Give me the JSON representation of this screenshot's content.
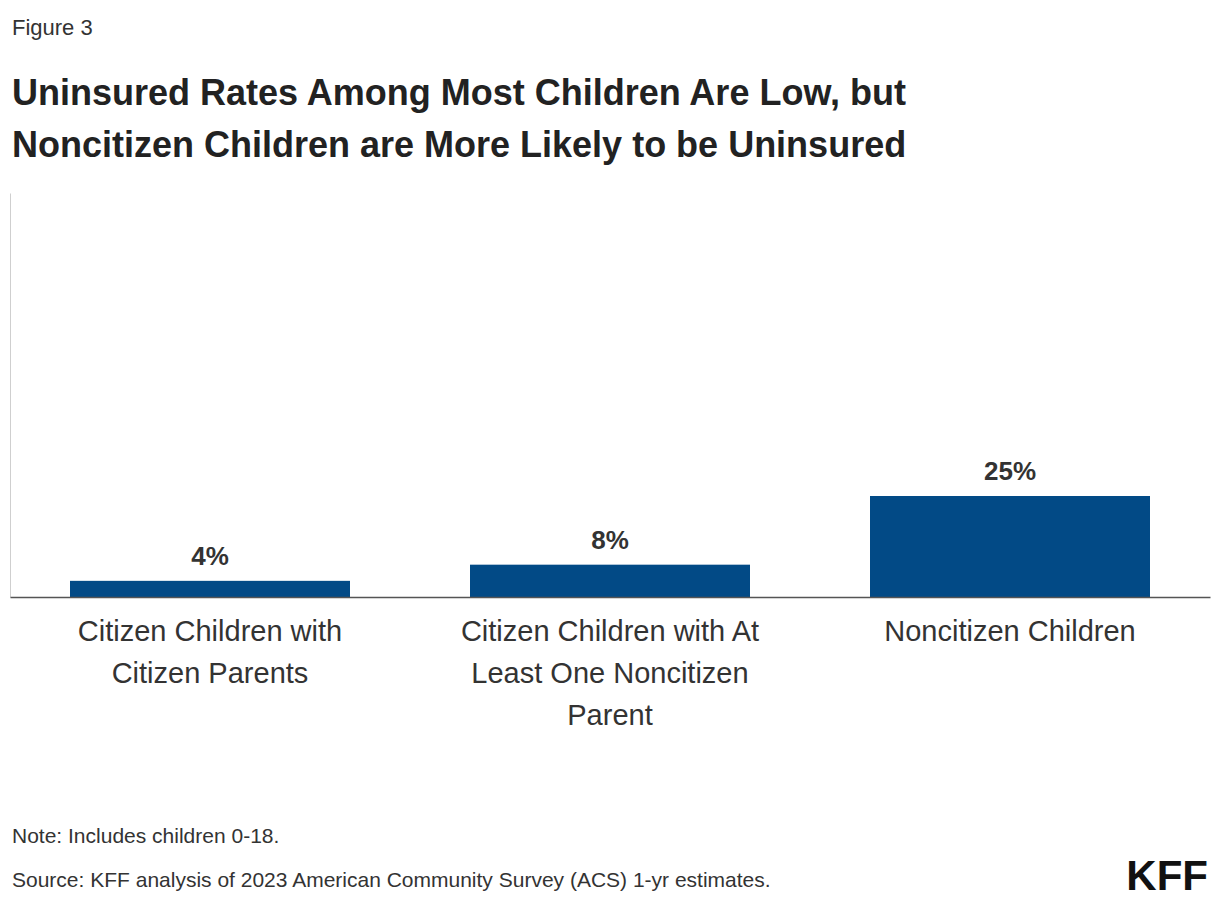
{
  "chart_data": {
    "type": "bar",
    "figure_label": "Figure 3",
    "title": "Uninsured Rates Among Most Children Are Low, but Noncitizen Children are More Likely to be Uninsured",
    "categories": [
      "Citizen Children with Citizen Parents",
      "Citizen Children with At Least One Noncitizen Parent",
      "Noncitizen Children"
    ],
    "values": [
      4,
      8,
      25
    ],
    "value_labels": [
      "4%",
      "8%",
      "25%"
    ],
    "color": "#024a86",
    "ylim": [
      0,
      100
    ],
    "yticks": [],
    "grid": false,
    "data_labels": true,
    "tick_labels": "x",
    "note": "Note: Includes children 0-18.",
    "source": "Source: KFF analysis of 2023 American Community Survey (ACS) 1-yr estimates.",
    "logo": "KFF"
  }
}
